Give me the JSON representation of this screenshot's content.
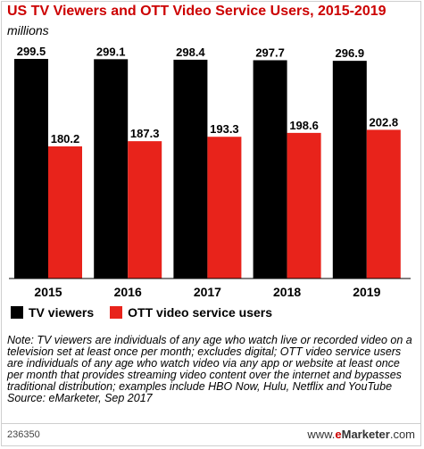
{
  "chart_data": {
    "type": "bar",
    "title": "US TV Viewers and OTT Video Service Users, 2015-2019",
    "subtitle": "millions",
    "xlabel": "",
    "ylabel": "",
    "categories": [
      "2015",
      "2016",
      "2017",
      "2018",
      "2019"
    ],
    "series": [
      {
        "name": "TV viewers",
        "values": [
          299.5,
          299.1,
          298.4,
          297.7,
          296.9
        ],
        "color": "#000000"
      },
      {
        "name": "OTT video service users",
        "values": [
          180.2,
          187.3,
          193.3,
          198.6,
          202.8
        ],
        "color": "#e8231b"
      }
    ],
    "value_labels": {
      "tv": [
        "299.5",
        "299.1",
        "298.4",
        "297.7",
        "296.9"
      ],
      "ott": [
        "180.2",
        "187.3",
        "193.3",
        "198.6",
        "202.8"
      ]
    },
    "ylim": [
      0,
      299.5
    ],
    "grid": false,
    "legend_position": "bottom-left"
  },
  "note": "Note: TV viewers are individuals of any age who watch live or recorded video on a television set at least once per month; excludes digital; OTT video service users are individuals of any age who watch video via any app or website at least once per month that provides streaming video content over the internet and bypasses traditional distribution; examples include HBO Now, Hulu, Netflix and YouTube",
  "source": "Source: eMarketer, Sep 2017",
  "footer": {
    "chart_id": "236350",
    "brand_prefix": "www.",
    "brand_e": "e",
    "brand_main": "Marketer",
    "brand_suffix": ".com"
  }
}
